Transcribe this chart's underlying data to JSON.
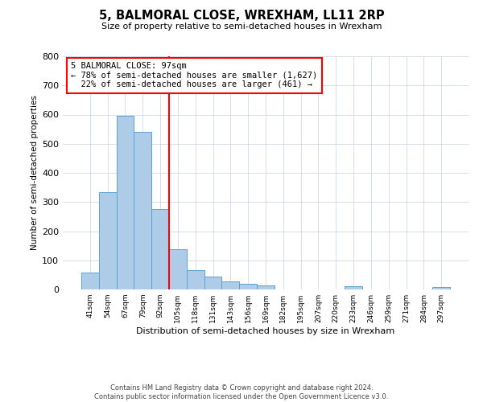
{
  "title": "5, BALMORAL CLOSE, WREXHAM, LL11 2RP",
  "subtitle": "Size of property relative to semi-detached houses in Wrexham",
  "xlabel": "Distribution of semi-detached houses by size in Wrexham",
  "ylabel": "Number of semi-detached properties",
  "bin_labels": [
    "41sqm",
    "54sqm",
    "67sqm",
    "79sqm",
    "92sqm",
    "105sqm",
    "118sqm",
    "131sqm",
    "143sqm",
    "156sqm",
    "169sqm",
    "182sqm",
    "195sqm",
    "207sqm",
    "220sqm",
    "233sqm",
    "246sqm",
    "259sqm",
    "271sqm",
    "284sqm",
    "297sqm"
  ],
  "bar_values": [
    57,
    335,
    595,
    542,
    275,
    137,
    65,
    44,
    27,
    20,
    13,
    0,
    0,
    0,
    0,
    10,
    0,
    0,
    0,
    0,
    7
  ],
  "bar_color": "#aecce8",
  "bar_edge_color": "#5ba3d0",
  "property_label": "5 BALMORAL CLOSE: 97sqm",
  "pct_smaller": 78,
  "count_smaller": 1627,
  "pct_larger": 22,
  "count_larger": 461,
  "vline_x_bin_index": 4.5,
  "vline_color": "red",
  "ylim": [
    0,
    800
  ],
  "yticks": [
    0,
    100,
    200,
    300,
    400,
    500,
    600,
    700,
    800
  ],
  "annotation_box_color": "#ffffff",
  "annotation_box_edge": "red",
  "footer": "Contains HM Land Registry data © Crown copyright and database right 2024.\nContains public sector information licensed under the Open Government Licence v3.0.",
  "bg_color": "#ffffff",
  "grid_color": "#d0d8e8"
}
